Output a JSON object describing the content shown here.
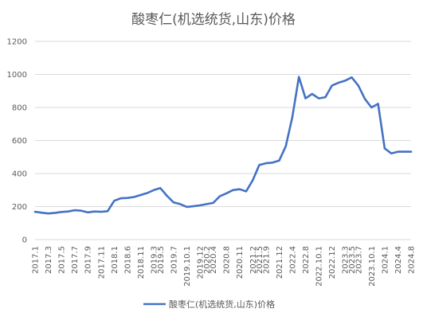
{
  "chart_data": {
    "type": "line",
    "title": "酸枣仁(机选统货,山东)价格",
    "ylim": [
      0,
      1200
    ],
    "yticks": [
      0,
      200,
      400,
      600,
      800,
      1000,
      1200
    ],
    "grid": true,
    "legend": "bottom",
    "color": "#4472c4",
    "x": [
      "2017.1",
      "2017.2",
      "2017.3",
      "2017.4",
      "2017.5",
      "2017.6",
      "2017.7",
      "2017.8",
      "2017.9",
      "2017.10",
      "2017.11",
      "2017.12",
      "2018.1",
      "2018.3",
      "2018.6",
      "2018.9",
      "2018.11",
      "2019.1",
      "2019.3",
      "2019.5",
      "2019.6",
      "2019.7",
      "2019.9",
      "2019.10.1",
      "2019.11",
      "2019.12",
      "2020.2",
      "2020.4",
      "2020.6",
      "2020.8",
      "2020.9",
      "2020.11",
      "2021.1",
      "2021.2",
      "2021.5",
      "2021.9",
      "2021.10",
      "2021.12",
      "2022.2",
      "2022.4",
      "2022.6",
      "2022.8",
      "2022.9",
      "2022.10.1",
      "2022.11",
      "2022.12",
      "2023.1",
      "2023.3",
      "2023.5",
      "2023.7",
      "2023.8",
      "2023.10.1",
      "2023.11",
      "2024.1",
      "2024.3",
      "2024.4",
      "2024.6",
      "2024.8"
    ],
    "xtick_labels": [
      "2017.1",
      "2017.3",
      "2017.5",
      "2017.7",
      "2017.9",
      "2017.11",
      "2018.1",
      "2018.6",
      "2018.11",
      "2019.3",
      "2019.5",
      "2019.7",
      "2019.10.1",
      "2019.12",
      "2020.2",
      "2020.4",
      "2020.8",
      "2020.11",
      "2021.2",
      "2021.5",
      "2021.9",
      "2021.12",
      "2022.4",
      "2022.8",
      "2022.10.1",
      "2022.12",
      "2023.3",
      "2023.5",
      "2023.7",
      "2023.10.1",
      "2024.1",
      "2024.4",
      "2024.8"
    ],
    "series": [
      {
        "name": "酸枣仁(机选统货,山东)价格",
        "values": [
          168,
          163,
          158,
          162,
          167,
          170,
          178,
          175,
          165,
          170,
          168,
          172,
          235,
          250,
          252,
          258,
          270,
          282,
          300,
          312,
          265,
          225,
          215,
          198,
          202,
          207,
          215,
          222,
          262,
          280,
          300,
          305,
          292,
          360,
          452,
          462,
          466,
          478,
          565,
          740,
          985,
          855,
          882,
          855,
          862,
          932,
          950,
          962,
          982,
          932,
          852,
          800,
          822,
          552,
          522,
          532,
          532,
          532
        ]
      }
    ]
  }
}
